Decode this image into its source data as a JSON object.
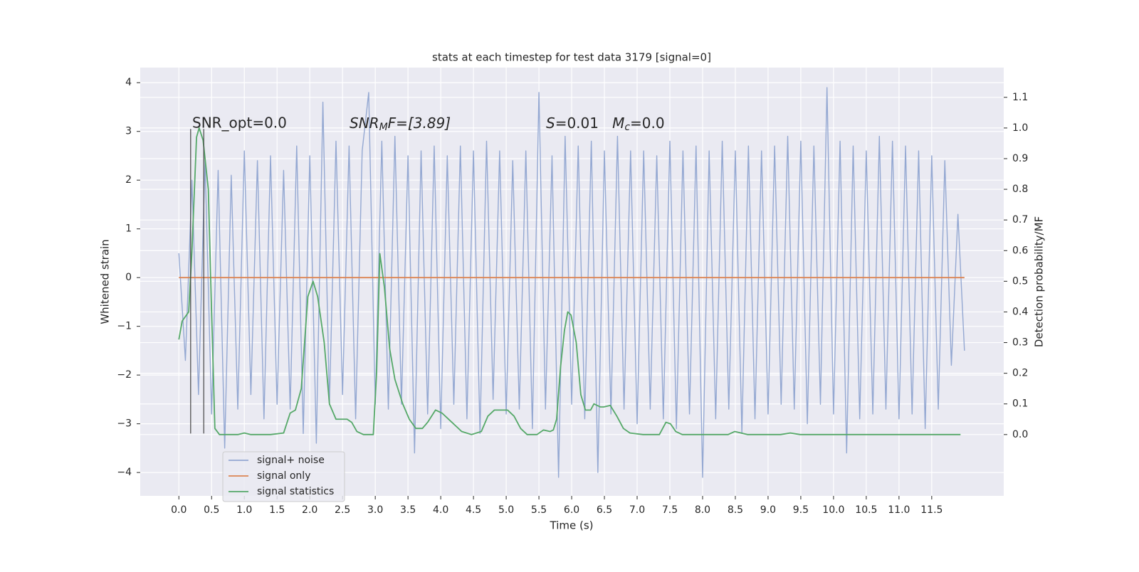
{
  "chart_data": {
    "type": "line",
    "title": "stats at each timestep for test data 3179 [signal=0]",
    "x_label": "Time (s)",
    "y_label": "Whitened strain",
    "y2_label": "Detection probability/MF",
    "xlim": [
      -0.59,
      12.6
    ],
    "ylim": [
      -4.48,
      4.31
    ],
    "y2lim": [
      -0.2,
      1.197
    ],
    "grid": true,
    "legend": "lower left",
    "xticks": [
      {
        "value": 0,
        "label": "0.0"
      },
      {
        "value": 0.5,
        "label": "0.5"
      },
      {
        "value": 1,
        "label": "1.0"
      },
      {
        "value": 1.5,
        "label": "1.5"
      },
      {
        "value": 2,
        "label": "2.0"
      },
      {
        "value": 2.5,
        "label": "2.5"
      },
      {
        "value": 3,
        "label": "3.0"
      },
      {
        "value": 3.5,
        "label": "3.5"
      },
      {
        "value": 4,
        "label": "4.0"
      },
      {
        "value": 4.5,
        "label": "4.5"
      },
      {
        "value": 5,
        "label": "5.0"
      },
      {
        "value": 5.5,
        "label": "5.5"
      },
      {
        "value": 6,
        "label": "6.0"
      },
      {
        "value": 6.5,
        "label": "6.5"
      },
      {
        "value": 7,
        "label": "7.0"
      },
      {
        "value": 7.5,
        "label": "7.5"
      },
      {
        "value": 8,
        "label": "8.0"
      },
      {
        "value": 8.5,
        "label": "8.5"
      },
      {
        "value": 9,
        "label": "9.0"
      },
      {
        "value": 9.5,
        "label": "9.5"
      },
      {
        "value": 10,
        "label": "10.0"
      },
      {
        "value": 10.5,
        "label": "10.5"
      },
      {
        "value": 11,
        "label": "11.0"
      },
      {
        "value": 11.5,
        "label": "11.5"
      }
    ],
    "yticks": [
      {
        "value": -4,
        "label": "−4"
      },
      {
        "value": -3,
        "label": "−3"
      },
      {
        "value": -2,
        "label": "−2"
      },
      {
        "value": -1,
        "label": "−1"
      },
      0,
      1,
      2,
      3,
      4
    ],
    "y2ticks": [
      {
        "value": 0,
        "label": "0.0"
      },
      {
        "value": 0.1,
        "label": "0.1"
      },
      {
        "value": 0.2,
        "label": "0.2"
      },
      {
        "value": 0.3,
        "label": "0.3"
      },
      {
        "value": 0.4,
        "label": "0.4"
      },
      {
        "value": 0.5,
        "label": "0.5"
      },
      {
        "value": 0.6,
        "label": "0.6"
      },
      {
        "value": 0.7,
        "label": "0.7"
      },
      {
        "value": 0.8,
        "label": "0.8"
      },
      {
        "value": 0.9,
        "label": "0.9"
      },
      {
        "value": 1,
        "label": "1.0"
      },
      {
        "value": 1.1,
        "label": "1.1"
      }
    ],
    "series": [
      {
        "name": "signal+ noise",
        "color": "#94a8d2",
        "x": [
          0,
          0.1,
          0.2,
          0.3,
          0.4,
          0.5,
          0.6,
          0.7,
          0.8,
          0.9,
          1,
          1.1,
          1.2,
          1.3,
          1.4,
          1.5,
          1.6,
          1.7,
          1.8,
          1.9,
          2,
          2.1,
          2.2,
          2.3,
          2.4,
          2.5,
          2.6,
          2.7,
          2.8,
          2.9,
          3,
          3.1,
          3.2,
          3.3,
          3.4,
          3.5,
          3.6,
          3.7,
          3.8,
          3.9,
          4,
          4.1,
          4.2,
          4.3,
          4.4,
          4.5,
          4.6,
          4.7,
          4.8,
          4.9,
          5,
          5.1,
          5.2,
          5.3,
          5.4,
          5.5,
          5.6,
          5.7,
          5.8,
          5.9,
          6,
          6.1,
          6.2,
          6.3,
          6.4,
          6.5,
          6.6,
          6.7,
          6.8,
          6.9,
          7,
          7.1,
          7.2,
          7.3,
          7.4,
          7.5,
          7.6,
          7.7,
          7.8,
          7.9,
          8,
          8.1,
          8.2,
          8.3,
          8.4,
          8.5,
          8.6,
          8.7,
          8.8,
          8.9,
          9,
          9.1,
          9.2,
          9.3,
          9.4,
          9.5,
          9.6,
          9.7,
          9.8,
          9.9,
          10,
          10.1,
          10.2,
          10.3,
          10.4,
          10.5,
          10.6,
          10.7,
          10.8,
          10.9,
          11,
          11.1,
          11.2,
          11.3,
          11.4,
          11.5,
          11.6,
          11.7,
          11.8,
          11.9,
          12
        ],
        "values": [
          0.5,
          -1.7,
          2.0,
          -2.4,
          2.4,
          -2.8,
          2.2,
          -3.5,
          2.1,
          -2.7,
          2.6,
          -2.4,
          2.4,
          -2.9,
          2.5,
          -2.6,
          2.2,
          -2.7,
          2.7,
          -3.2,
          2.5,
          -3.4,
          3.6,
          -2.6,
          2.8,
          -2.4,
          2.7,
          -2.9,
          2.6,
          3.8,
          -2.6,
          2.8,
          -2.7,
          2.9,
          -2.6,
          2.5,
          -3.6,
          2.6,
          -2.8,
          2.7,
          -3.1,
          2.5,
          -2.6,
          2.7,
          -2.9,
          2.6,
          -3.2,
          2.8,
          -2.5,
          2.6,
          -2.8,
          2.4,
          -2.7,
          2.6,
          -3.1,
          3.8,
          -2.7,
          2.5,
          -4.1,
          2.9,
          -2.6,
          2.7,
          -2.9,
          2.8,
          -4.0,
          2.6,
          -2.8,
          2.9,
          -2.7,
          2.6,
          -3.0,
          2.6,
          -2.7,
          2.5,
          -2.9,
          2.8,
          -3.1,
          2.6,
          -2.8,
          2.7,
          -4.1,
          2.6,
          -2.9,
          2.8,
          -2.7,
          2.6,
          -3.2,
          2.7,
          -2.9,
          2.6,
          -2.8,
          2.7,
          -2.6,
          2.9,
          -2.7,
          2.8,
          -3.0,
          2.7,
          -2.6,
          3.9,
          -2.8,
          2.8,
          -3.6,
          2.7,
          -2.9,
          2.6,
          -2.8,
          2.9,
          -2.7,
          2.8,
          -2.9,
          2.7,
          -2.8,
          2.6,
          -3.1,
          2.5,
          -2.7,
          2.4,
          -1.8,
          1.3,
          -1.5
        ]
      },
      {
        "name": "signal only",
        "color": "#dd8452",
        "x": [
          0,
          12
        ],
        "values": [
          0,
          0
        ]
      },
      {
        "name": "signal statistics",
        "color": "#55a868",
        "axis": "y2",
        "x": [
          0,
          0.05,
          0.15,
          0.2,
          0.27,
          0.31,
          0.37,
          0.45,
          0.5,
          0.55,
          0.62,
          0.9,
          1.0,
          1.1,
          1.4,
          1.6,
          1.7,
          1.78,
          1.87,
          1.97,
          2.05,
          2.12,
          2.22,
          2.3,
          2.4,
          2.5,
          2.57,
          2.64,
          2.72,
          2.82,
          2.97,
          3.02,
          3.07,
          3.14,
          3.22,
          3.3,
          3.42,
          3.52,
          3.62,
          3.72,
          3.8,
          3.92,
          4.02,
          4.17,
          4.32,
          4.47,
          4.62,
          4.72,
          4.82,
          5.02,
          5.12,
          5.22,
          5.32,
          5.47,
          5.57,
          5.67,
          5.72,
          5.77,
          5.83,
          5.89,
          5.94,
          5.99,
          6.07,
          6.14,
          6.21,
          6.29,
          6.34,
          6.44,
          6.49,
          6.59,
          6.69,
          6.79,
          6.89,
          7.09,
          7.34,
          7.44,
          7.51,
          7.59,
          7.69,
          7.99,
          8.39,
          8.49,
          8.69,
          9.19,
          9.34,
          9.49,
          11.49,
          11.94
        ],
        "values": [
          0.31,
          0.37,
          0.4,
          0.6,
          0.97,
          1.0,
          0.96,
          0.8,
          0.4,
          0.02,
          0.0,
          0.0,
          0.005,
          0.0,
          0.0,
          0.005,
          0.07,
          0.08,
          0.15,
          0.45,
          0.5,
          0.45,
          0.3,
          0.1,
          0.05,
          0.05,
          0.05,
          0.04,
          0.01,
          0.0,
          0.0,
          0.2,
          0.59,
          0.48,
          0.28,
          0.18,
          0.1,
          0.05,
          0.02,
          0.02,
          0.04,
          0.08,
          0.07,
          0.04,
          0.01,
          0.0,
          0.01,
          0.06,
          0.08,
          0.08,
          0.06,
          0.02,
          0.0,
          0.0,
          0.015,
          0.01,
          0.015,
          0.05,
          0.22,
          0.34,
          0.4,
          0.39,
          0.3,
          0.13,
          0.08,
          0.08,
          0.1,
          0.09,
          0.09,
          0.095,
          0.06,
          0.02,
          0.005,
          0.0,
          0.0,
          0.04,
          0.035,
          0.01,
          0.0,
          0.0,
          0.0,
          0.01,
          0.0,
          0.0,
          0.005,
          0.0,
          0.0,
          0.0
        ]
      }
    ],
    "vlines": {
      "x": [
        0.18,
        0.38
      ],
      "color": "#444444",
      "ylim": [
        -3.2,
        3.05
      ]
    },
    "annotations": [
      [
        "SNR_opt=0.0"
      ],
      [
        "SNR",
        "M",
        "F=[3.89]"
      ],
      [
        "S",
        "=0.01   ",
        "M",
        "c",
        "=0.0"
      ]
    ]
  }
}
